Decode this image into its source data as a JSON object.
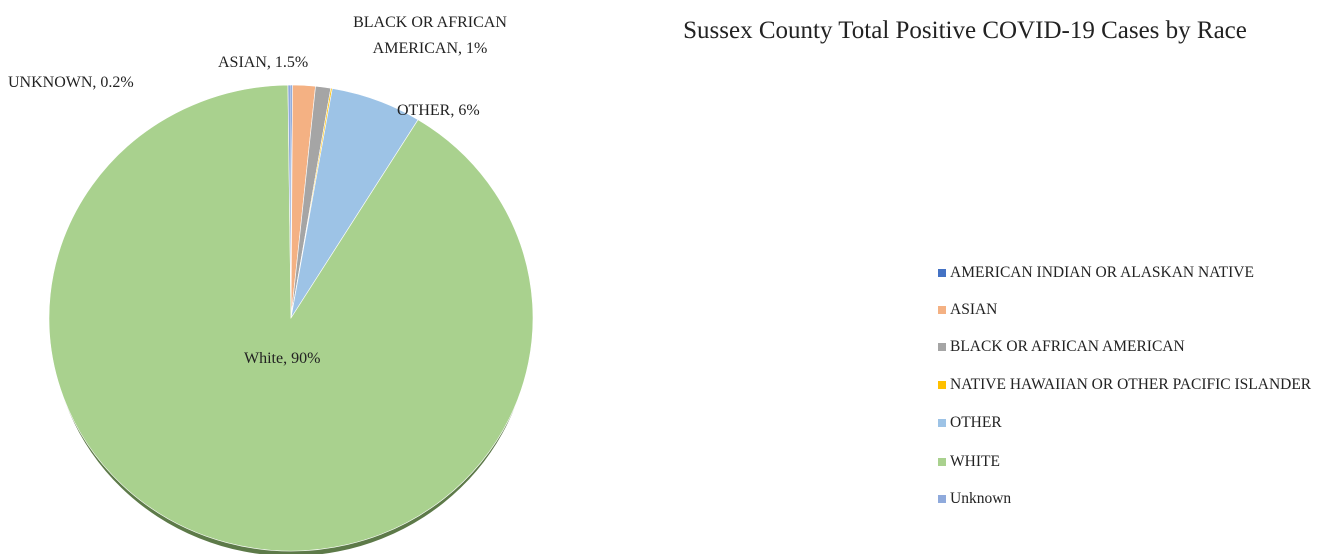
{
  "chart_data": {
    "type": "pie",
    "title": "Sussex County Total Positive COVID-19 Cases by Race",
    "categories": [
      "AMERICAN INDIAN OR ALASKAN NATIVE",
      "ASIAN",
      "BLACK OR AFRICAN AMERICAN",
      "NATIVE HAWAIIAN OR OTHER PACIFIC ISLANDER",
      "OTHER",
      "WHITE",
      "Unknown"
    ],
    "values": [
      0.1,
      1.5,
      1,
      0.1,
      6,
      90,
      0.2
    ],
    "value_labels": [
      null,
      "ASIAN, 1.5%",
      "BLACK OR AFRICAN AMERICAN, 1%",
      null,
      "OTHER, 6%",
      "White, 90%",
      "UNKNOWN, 0.2%"
    ],
    "colors": [
      "#4472c4",
      "#f4b183",
      "#a5a5a5",
      "#ffc000",
      "#9dc3e6",
      "#a9d18e",
      "#8faadc"
    ],
    "legend": "right"
  }
}
